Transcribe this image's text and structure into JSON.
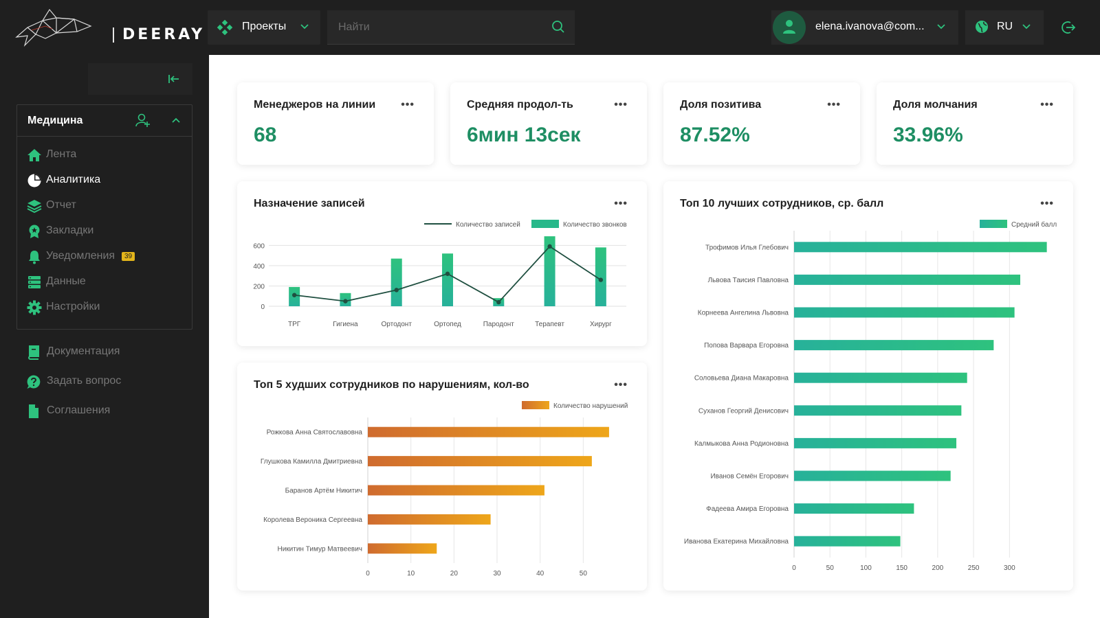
{
  "header": {
    "logo_text": "DEERAY",
    "projects_label": "Проекты",
    "search_placeholder": "Найти",
    "user_email": "elena.ivanova@com...",
    "language": "RU"
  },
  "sidebar": {
    "group_title": "Медицина",
    "items": [
      {
        "label": "Лента",
        "icon": "home-icon"
      },
      {
        "label": "Аналитика",
        "icon": "pie-chart-icon",
        "active": true
      },
      {
        "label": "Отчет",
        "icon": "layers-icon"
      },
      {
        "label": "Закладки",
        "icon": "bookmark-badge-icon"
      },
      {
        "label": "Уведомления",
        "icon": "bell-icon",
        "badge": "39"
      },
      {
        "label": "Данные",
        "icon": "database-icon"
      },
      {
        "label": "Настройки",
        "icon": "gear-icon"
      }
    ],
    "extra_items": [
      {
        "label": "Документация",
        "icon": "book-icon"
      },
      {
        "label": "Задать вопрос",
        "icon": "question-icon"
      },
      {
        "label": "Соглашения",
        "icon": "document-icon"
      }
    ]
  },
  "kpis": [
    {
      "title": "Менеджеров на линии",
      "value": "68"
    },
    {
      "title": "Средняя продол-ть",
      "value": "6мин 13сек"
    },
    {
      "title": "Доля позитива",
      "value": "87.52%"
    },
    {
      "title": "Доля молчания",
      "value": "33.96%"
    }
  ],
  "colors": {
    "accent": "#1e8e63",
    "bar_green": "#2ec27e",
    "bar_teal": "#27b19a",
    "bar_orange": "#e9a21c",
    "bar_orange_dark": "#cf6b2f",
    "line": "#1f4f40"
  },
  "chart_data": [
    {
      "type": "bar",
      "title": "Назначение записей",
      "categories": [
        "ТРГ",
        "Гигиена",
        "Ортодонт",
        "Ортопед",
        "Пародонт",
        "Терапевт",
        "Хирург"
      ],
      "series": [
        {
          "name": "Количество звонков",
          "kind": "bar",
          "values": [
            190,
            130,
            470,
            520,
            80,
            690,
            580
          ]
        },
        {
          "name": "Количество записей",
          "kind": "line",
          "values": [
            110,
            50,
            160,
            320,
            40,
            590,
            260
          ]
        }
      ],
      "yticks": [
        0,
        200,
        400,
        600
      ],
      "ylim": [
        0,
        650
      ],
      "legend": "top-right",
      "grid": true
    },
    {
      "type": "bar",
      "orientation": "horizontal",
      "title": "Топ 5 худших сотрудников по нарушениям, кол-во",
      "categories": [
        "Рожкова Анна Святославовна",
        "Глушкова Камилла Дмитриевна",
        "Баранов Артём Никитич",
        "Королева Вероника Сергеевна",
        "Никитин Тимур Матвеевич"
      ],
      "series": [
        {
          "name": "Количество нарушений",
          "values": [
            56,
            52,
            41,
            28.5,
            16
          ]
        }
      ],
      "xticks": [
        0,
        10,
        20,
        30,
        40,
        50
      ],
      "xlim": [
        0,
        60
      ],
      "legend": "top-right",
      "grid": true
    },
    {
      "type": "bar",
      "orientation": "horizontal",
      "title": "Топ 10 лучших сотрудников, ср. балл",
      "categories": [
        "Трофимов Илья Глебович",
        "Львова Таисия Павловна",
        "Корнеева Ангелина Львовна",
        "Попова Варвара Егоровна",
        "Соловьева Диана Макаровна",
        "Суханов Георгий Денисович",
        "Калмыкова Анна Родионовна",
        "Иванов Семён Егорович",
        "Фадеева Амира Егоровна",
        "Иванова Екатерина Михайловна"
      ],
      "series": [
        {
          "name": "Средний балл",
          "values": [
            352,
            315,
            307,
            278,
            241,
            233,
            226,
            218,
            167,
            148
          ]
        }
      ],
      "xticks": [
        0,
        50,
        100,
        150,
        200,
        250,
        300
      ],
      "xlim": [
        0,
        360
      ],
      "legend": "top-right",
      "grid": true
    }
  ]
}
